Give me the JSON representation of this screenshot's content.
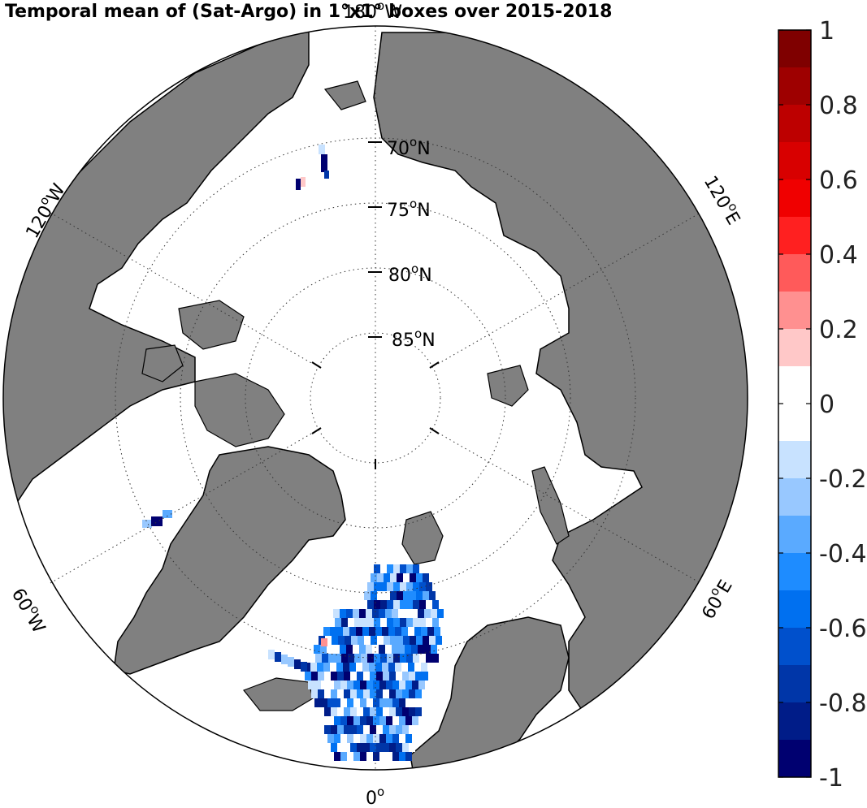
{
  "title": "Temporal mean of (Sat-Argo) in 1°x1° boxes over 2015-2018",
  "map": {
    "projection": "north polar stereographic",
    "land_color": "#808080",
    "ocean_color": "#ffffff",
    "lat_labels": [
      "70",
      "75",
      "80",
      "85"
    ],
    "lat_suffix": "N",
    "lon_labels": {
      "top": "180",
      "top_suffix": "W",
      "left_upper": "120",
      "left_upper_suffix": "W",
      "left_lower": "60",
      "left_lower_suffix": "W",
      "bottom": "0",
      "right_upper": "120",
      "right_upper_suffix": "E",
      "right_lower": "60",
      "right_lower_suffix": "E"
    }
  },
  "colorbar": {
    "min": -1,
    "max": 1,
    "tick_labels": [
      "1",
      "0.8",
      "0.6",
      "0.4",
      "0.2",
      "0",
      "-0.2",
      "-0.4",
      "-0.6",
      "-0.8",
      "-1"
    ],
    "colors_top_to_bottom": [
      "#7f0000",
      "#9e0000",
      "#bd0000",
      "#d80000",
      "#f00000",
      "#ff2020",
      "#ff5a5a",
      "#ff9090",
      "#ffc8c8",
      "#ffffff",
      "#ffffff",
      "#c8e2ff",
      "#98c8ff",
      "#5aaaff",
      "#1e8cff",
      "#0070f0",
      "#0050cc",
      "#0036a8",
      "#001c88",
      "#000070"
    ]
  }
}
